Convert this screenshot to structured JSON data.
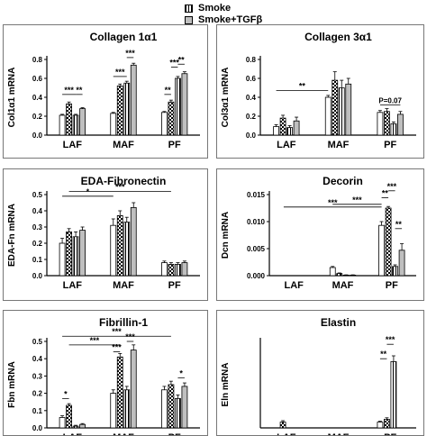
{
  "legend": {
    "items": [
      {
        "label": "Smoke",
        "pattern": "hatch"
      },
      {
        "label": "Smoke+TGFβ",
        "pattern": "gray"
      }
    ]
  },
  "colors": {
    "axis": "#000000",
    "bar_gray": "#bfbfbf",
    "bar_dark": "#555555",
    "panel_border": "#777777"
  },
  "chart_data": [
    {
      "type": "bar",
      "title": "Collagen 1α1",
      "ylabel": "Col1α1 mRNA",
      "ylim": [
        0,
        0.8
      ],
      "yticks": [
        "0.0",
        "0.2",
        "0.4",
        "0.6",
        "0.8"
      ],
      "categories": [
        "LAF",
        "MAF",
        "PF"
      ],
      "bar_patterns": [
        "white",
        "check",
        "hatch",
        "gray"
      ],
      "values": [
        [
          0.21,
          0.33,
          0.21,
          0.28
        ],
        [
          0.23,
          0.52,
          0.55,
          0.74
        ],
        [
          0.24,
          0.35,
          0.6,
          0.65
        ]
      ],
      "errors": [
        [
          0.01,
          0.02,
          0.01,
          0.01
        ],
        [
          0.01,
          0.02,
          0.02,
          0.02
        ],
        [
          0.01,
          0.02,
          0.02,
          0.02
        ]
      ],
      "annotations": [
        {
          "text": "***",
          "from": [
            0,
            0
          ],
          "to": [
            0,
            2
          ],
          "y": 0.43
        },
        {
          "text": "**",
          "from": [
            0,
            2
          ],
          "to": [
            0,
            3
          ],
          "y": 0.43
        },
        {
          "text": "***",
          "from": [
            1,
            0
          ],
          "to": [
            1,
            2
          ],
          "y": 0.62
        },
        {
          "text": "***",
          "from": [
            1,
            2
          ],
          "to": [
            1,
            3
          ],
          "y": 0.82
        },
        {
          "text": "**",
          "from": [
            2,
            0
          ],
          "to": [
            2,
            1
          ],
          "y": 0.43
        },
        {
          "text": "***",
          "from": [
            2,
            1
          ],
          "to": [
            2,
            2
          ],
          "y": 0.72
        },
        {
          "text": "**",
          "from": [
            2,
            2
          ],
          "to": [
            2,
            3
          ],
          "y": 0.75
        }
      ]
    },
    {
      "type": "bar",
      "title": "Collagen 3α1",
      "ylabel": "Col3α1 mRNA",
      "ylim": [
        0,
        0.8
      ],
      "yticks": [
        "0.0",
        "0.2",
        "0.4",
        "0.6",
        "0.8"
      ],
      "categories": [
        "LAF",
        "MAF",
        "PF"
      ],
      "bar_patterns": [
        "white",
        "check",
        "hatch",
        "gray"
      ],
      "values": [
        [
          0.09,
          0.18,
          0.08,
          0.15
        ],
        [
          0.4,
          0.58,
          0.5,
          0.54
        ],
        [
          0.24,
          0.25,
          0.12,
          0.22
        ]
      ],
      "errors": [
        [
          0.02,
          0.03,
          0.02,
          0.04
        ],
        [
          0.02,
          0.09,
          0.08,
          0.06
        ],
        [
          0.02,
          0.03,
          0.02,
          0.03
        ]
      ],
      "annotations": [
        {
          "text": "**",
          "from": [
            0,
            0
          ],
          "to": [
            1,
            0
          ],
          "y": 0.47
        },
        {
          "text": "P=0.07",
          "from": [
            2,
            0
          ],
          "to": [
            2,
            3
          ],
          "y": 0.32
        }
      ]
    },
    {
      "type": "bar",
      "title": "EDA-Fibronectin",
      "ylabel": "EDA-Fn mRNA",
      "ylim": [
        0,
        0.5
      ],
      "yticks": [
        "0.0",
        "0.1",
        "0.2",
        "0.3",
        "0.4",
        "0.5"
      ],
      "categories": [
        "LAF",
        "MAF",
        "PF"
      ],
      "bar_patterns": [
        "white",
        "check",
        "hatch",
        "gray"
      ],
      "values": [
        [
          0.2,
          0.27,
          0.24,
          0.28
        ],
        [
          0.31,
          0.37,
          0.33,
          0.42
        ],
        [
          0.08,
          0.07,
          0.07,
          0.08
        ]
      ],
      "errors": [
        [
          0.03,
          0.02,
          0.03,
          0.02
        ],
        [
          0.04,
          0.03,
          0.03,
          0.03
        ],
        [
          0.01,
          0.01,
          0.01,
          0.01
        ]
      ],
      "annotations": [
        {
          "text": "*",
          "from": [
            0,
            0
          ],
          "to": [
            1,
            0
          ],
          "y": 0.49
        },
        {
          "text": "***",
          "from": [
            0,
            1
          ],
          "to": [
            2,
            1
          ],
          "y": 0.52
        }
      ]
    },
    {
      "type": "bar",
      "title": "Decorin",
      "ylabel": "Dcn mRNA",
      "ylim": [
        0,
        0.015
      ],
      "yticks": [
        "0.000",
        "0.005",
        "0.010",
        "0.015"
      ],
      "categories": [
        "LAF",
        "MAF",
        "PF"
      ],
      "bar_patterns": [
        "white",
        "check",
        "hatch",
        "gray"
      ],
      "values": [
        [
          0.0,
          0.0,
          0.0,
          0.0
        ],
        [
          0.0015,
          0.0004,
          0.0001,
          0.0001
        ],
        [
          0.0093,
          0.0125,
          0.0017,
          0.0047
        ]
      ],
      "errors": [
        [
          0,
          0,
          0,
          0
        ],
        [
          0.0002,
          0.0001,
          5e-05,
          5e-05
        ],
        [
          0.0007,
          0.0003,
          0.0003,
          0.0012
        ]
      ],
      "annotations": [
        {
          "text": "***",
          "from": [
            0,
            0
          ],
          "to": [
            2,
            0
          ],
          "y": 0.0127
        },
        {
          "text": "***",
          "from": [
            1,
            0
          ],
          "to": [
            2,
            0
          ],
          "y": 0.0132
        },
        {
          "text": "**",
          "from": [
            2,
            0
          ],
          "to": [
            2,
            1
          ],
          "y": 0.0144
        },
        {
          "text": "***",
          "from": [
            2,
            1
          ],
          "to": [
            2,
            2
          ],
          "y": 0.0157
        },
        {
          "text": "**",
          "from": [
            2,
            2
          ],
          "to": [
            2,
            3
          ],
          "y": 0.0087
        }
      ]
    },
    {
      "type": "bar",
      "title": "Fibrillin-1",
      "ylabel": "Fbn mRNA",
      "ylim": [
        0,
        0.5
      ],
      "yticks": [
        "0.0",
        "0.1",
        "0.2",
        "0.3",
        "0.4",
        "0.5"
      ],
      "categories": [
        "LAF",
        "MAF",
        "PF"
      ],
      "bar_patterns": [
        "white",
        "check",
        "hatch",
        "gray"
      ],
      "values": [
        [
          0.06,
          0.13,
          0.01,
          0.02
        ],
        [
          0.2,
          0.41,
          0.22,
          0.45
        ],
        [
          0.22,
          0.25,
          0.17,
          0.24
        ]
      ],
      "errors": [
        [
          0.01,
          0.01,
          0.005,
          0.005
        ],
        [
          0.02,
          0.02,
          0.02,
          0.03
        ],
        [
          0.02,
          0.02,
          0.02,
          0.02
        ]
      ],
      "annotations": [
        {
          "text": "***",
          "from": [
            0,
            0
          ],
          "to": [
            2,
            1
          ],
          "y": 0.53
        },
        {
          "text": "***",
          "from": [
            0,
            1
          ],
          "to": [
            1,
            1
          ],
          "y": 0.48
        },
        {
          "text": "*",
          "from": [
            0,
            0
          ],
          "to": [
            0,
            1
          ],
          "y": 0.17
        },
        {
          "text": "***",
          "from": [
            1,
            0
          ],
          "to": [
            1,
            1
          ],
          "y": 0.44
        },
        {
          "text": "***",
          "from": [
            1,
            2
          ],
          "to": [
            1,
            3
          ],
          "y": 0.5
        },
        {
          "text": "*",
          "from": [
            2,
            2
          ],
          "to": [
            2,
            3
          ],
          "y": 0.29
        }
      ]
    },
    {
      "type": "bar",
      "title": "Elastin",
      "ylabel": "Eln mRNA",
      "ylim": [
        0,
        0.3
      ],
      "yticks": [],
      "categories": [
        "LAF",
        "MAF",
        "PF"
      ],
      "bar_patterns": [
        "white",
        "check",
        "hatch",
        "gray"
      ],
      "values": [
        [
          0.0,
          0.02,
          0.0,
          0.0
        ],
        [
          0.0,
          0.0,
          0.0,
          0.0
        ],
        [
          0.02,
          0.03,
          0.23,
          0.0
        ]
      ],
      "errors": [
        [
          0,
          0.005,
          0,
          0
        ],
        [
          0,
          0,
          0,
          0
        ],
        [
          0.003,
          0.005,
          0.02,
          0
        ]
      ],
      "annotations": [
        {
          "text": "**",
          "from": [
            2,
            0
          ],
          "to": [
            2,
            1
          ],
          "y": 0.24
        },
        {
          "text": "***",
          "from": [
            2,
            1
          ],
          "to": [
            2,
            2
          ],
          "y": 0.29
        }
      ]
    }
  ]
}
